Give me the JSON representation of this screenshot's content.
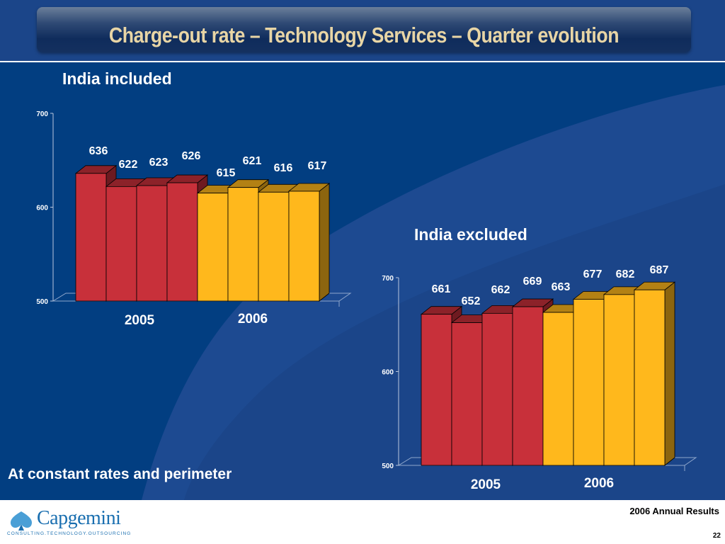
{
  "title": "Charge-out rate – Technology Services – Quarter evolution",
  "footnote": "At constant rates and perimeter",
  "footer": {
    "results_label": "2006 Annual Results",
    "page_number": "22",
    "logo_name": "Capgemini",
    "logo_tagline": "CONSULTING.TECHNOLOGY.OUTSOURCING"
  },
  "colors": {
    "background": "#1b4589",
    "red_2005": "#c8303a",
    "yellow_2006": "#ffb81c",
    "title_text": "#e8d5a5"
  },
  "chart_data": [
    {
      "type": "bar",
      "title": "India included",
      "categories": [
        "",
        "",
        "",
        "",
        "",
        "",
        "",
        ""
      ],
      "groups": [
        "2005",
        "2006"
      ],
      "values": [
        636,
        622,
        623,
        626,
        615,
        621,
        616,
        617
      ],
      "group_of_bar": [
        "2005",
        "2005",
        "2005",
        "2005",
        "2006",
        "2006",
        "2006",
        "2006"
      ],
      "yticks": [
        500,
        600,
        700
      ],
      "ylim": [
        500,
        700
      ],
      "grid": false,
      "style": "3d"
    },
    {
      "type": "bar",
      "title": "India excluded",
      "categories": [
        "",
        "",
        "",
        "",
        "",
        "",
        "",
        ""
      ],
      "groups": [
        "2005",
        "2006"
      ],
      "values": [
        661,
        652,
        662,
        669,
        663,
        677,
        682,
        687
      ],
      "group_of_bar": [
        "2005",
        "2005",
        "2005",
        "2005",
        "2006",
        "2006",
        "2006",
        "2006"
      ],
      "yticks": [
        500,
        600,
        700
      ],
      "ylim": [
        500,
        700
      ],
      "grid": false,
      "style": "3d"
    }
  ]
}
